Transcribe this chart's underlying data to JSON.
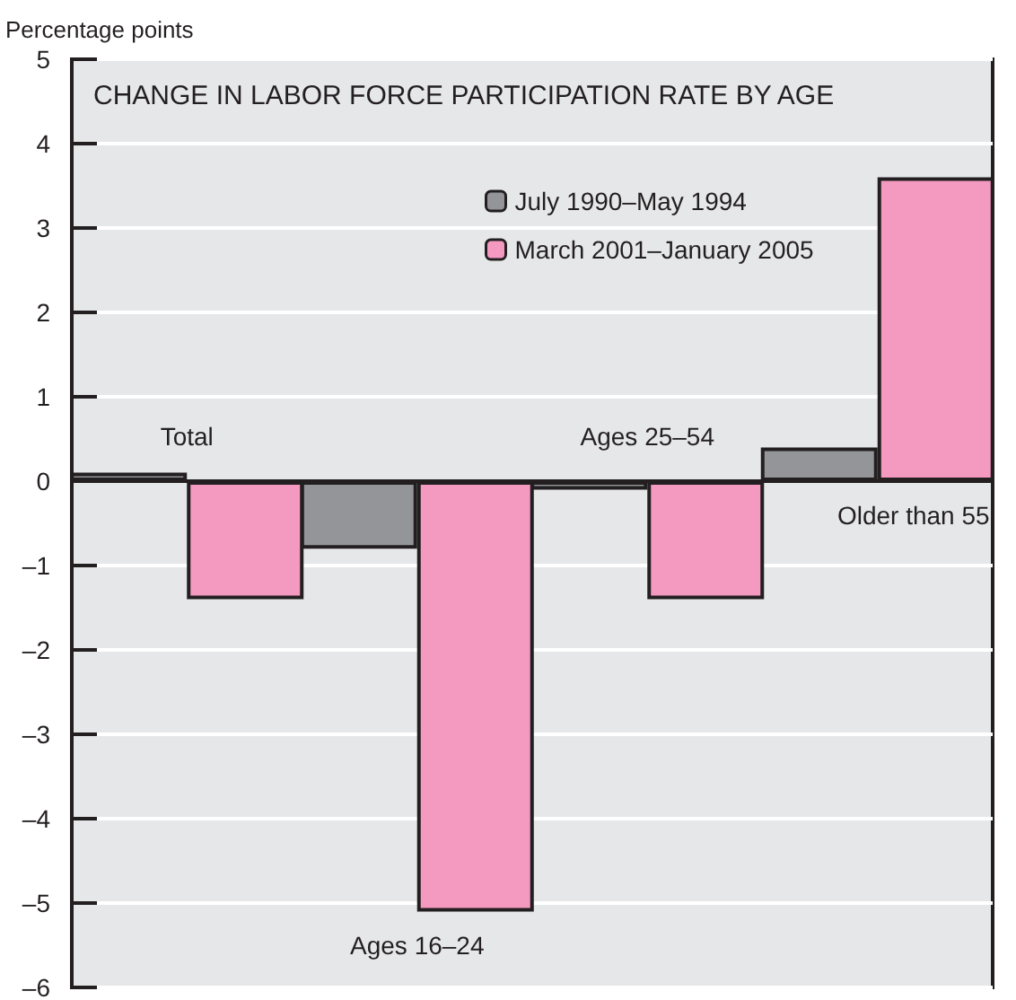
{
  "chart_data": {
    "type": "bar",
    "title": "CHANGE IN LABOR FORCE PARTICIPATION RATE BY AGE",
    "ylabel": "Percentage points",
    "categories": [
      "Total",
      "Ages 16–24",
      "Ages 25–54",
      "Older than 55"
    ],
    "series": [
      {
        "name": "July 1990–May 1994",
        "color": "#939598",
        "values": [
          0.1,
          -0.8,
          -0.1,
          0.4
        ]
      },
      {
        "name": "March 2001–January 2005",
        "color": "#f49ac1",
        "values": [
          -1.4,
          -5.1,
          -1.4,
          3.6
        ]
      }
    ],
    "ylim": [
      -6,
      5
    ],
    "yticks": [
      {
        "value": -6,
        "label": "–6"
      },
      {
        "value": -5,
        "label": "–5"
      },
      {
        "value": -4,
        "label": "–4"
      },
      {
        "value": -3,
        "label": "–3"
      },
      {
        "value": -2,
        "label": "–2"
      },
      {
        "value": -1,
        "label": "–1"
      },
      0,
      1,
      2,
      3,
      4,
      5
    ],
    "grid": "y",
    "legend": "top"
  }
}
